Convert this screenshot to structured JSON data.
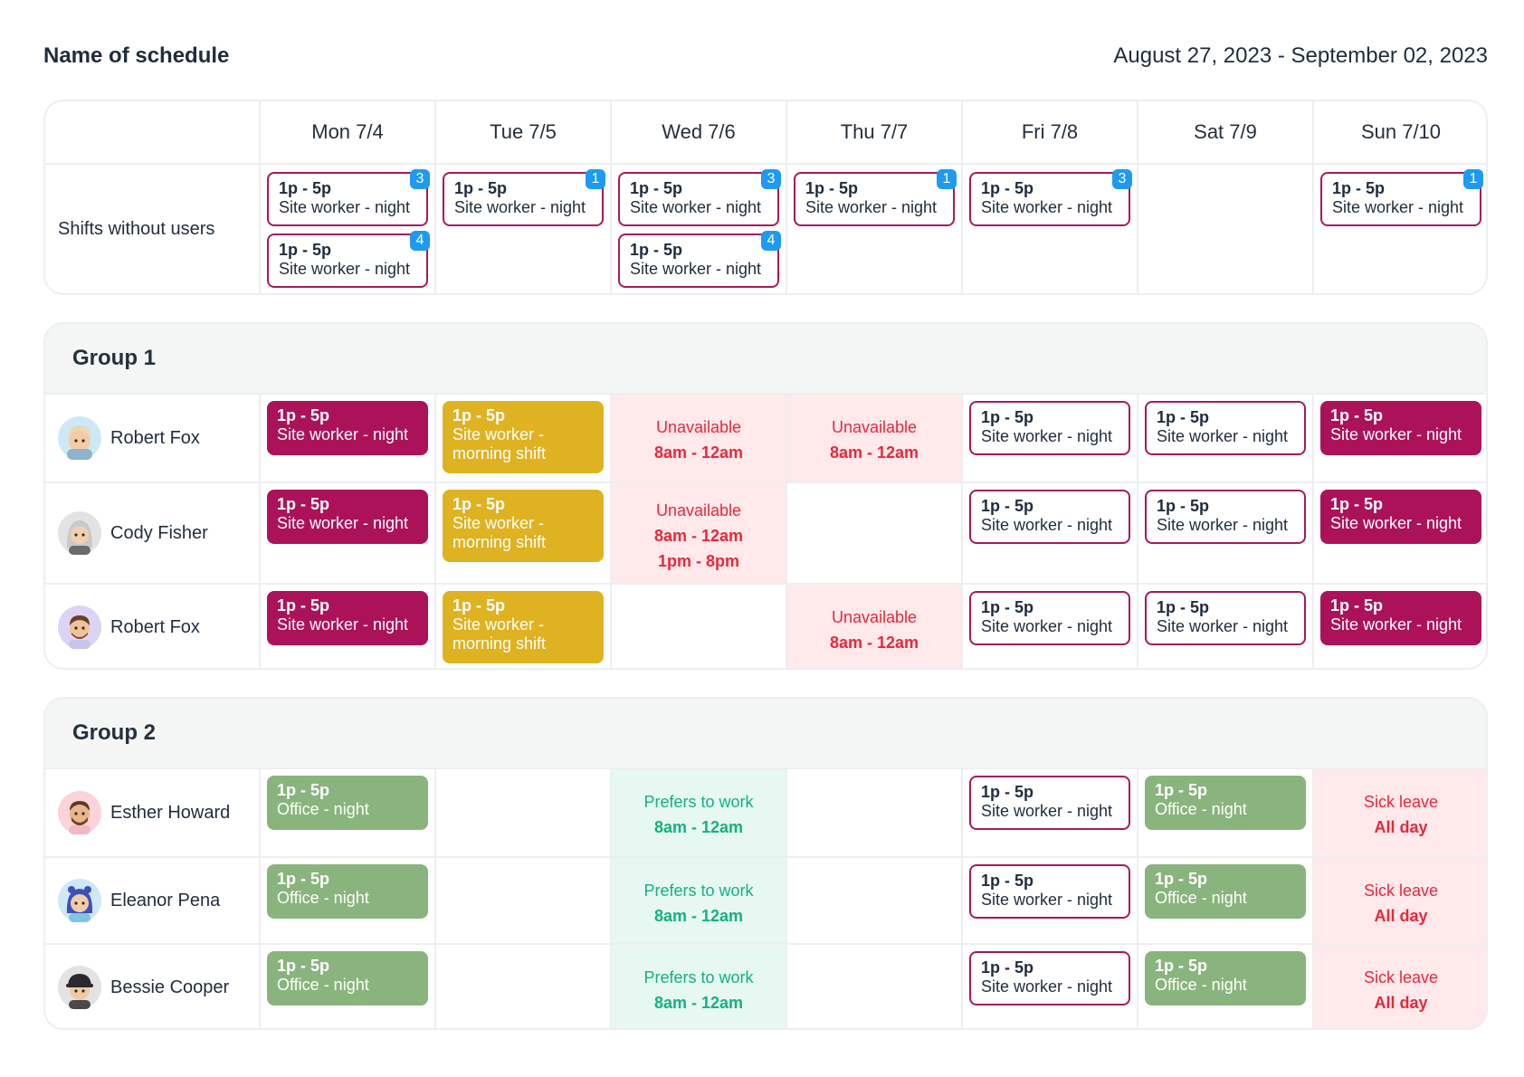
{
  "schedule": {
    "title": "Name of schedule",
    "date_range": "August 27, 2023 - September 02, 2023"
  },
  "days": [
    "Mon 7/4",
    "Tue 7/5",
    "Wed 7/6",
    "Thu 7/7",
    "Fri 7/8",
    "Sat 7/9",
    "Sun 7/10"
  ],
  "unassigned": {
    "label": "Shifts without users",
    "shift_time": "1p - 5p",
    "shift_role": "Site worker - night",
    "badges": {
      "mon_1": "3",
      "mon_2": "4",
      "tue_1": "1",
      "wed_1": "3",
      "wed_2": "4",
      "thu_1": "1",
      "fri_1": "3",
      "sun_1": "1"
    }
  },
  "shift_labels": {
    "time": "1p - 5p",
    "night": "Site worker - night",
    "morning_1": "Site worker -",
    "morning_2": "morning shift",
    "office": "Office - night"
  },
  "status_labels": {
    "unavailable": "Unavailable",
    "time_a": "8am - 12am",
    "time_b": "1pm - 8pm",
    "prefers": "Prefers to work",
    "sick": "Sick leave",
    "all_day": "All day"
  },
  "group1": {
    "name": "Group 1",
    "members": [
      "Robert Fox",
      "Cody Fisher",
      "Robert Fox"
    ]
  },
  "group2": {
    "name": "Group 2",
    "members": [
      "Esther Howard",
      "Eleanor Pena",
      "Bessie Cooper"
    ]
  },
  "colors": {
    "night_shift": "#ac1259",
    "morning_shift": "#dfb221",
    "office_shift": "#8ab47d",
    "badge": "#1e9bf0",
    "unavailable_text": "#e8283b",
    "prefer_text": "#13b27f"
  },
  "icons": {
    "avatar_style": "memoji-avatar"
  }
}
